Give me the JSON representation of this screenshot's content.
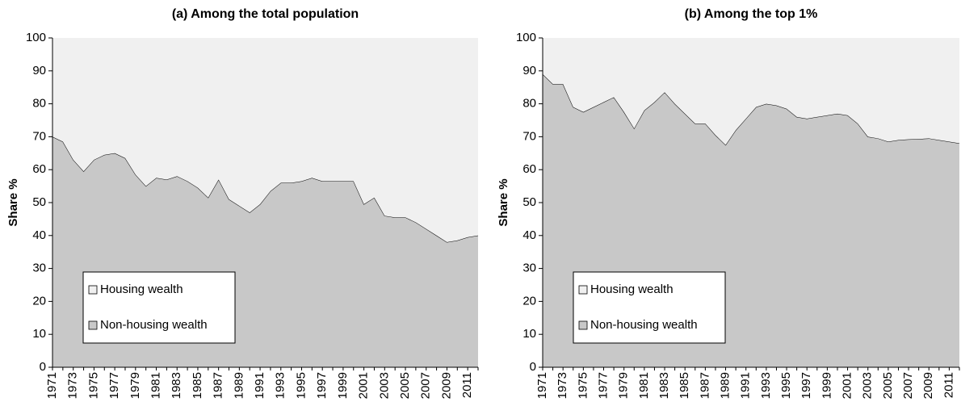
{
  "chart_data": [
    {
      "type": "area",
      "stacked": true,
      "title": "(a) Among the total population",
      "y_label": "Share %",
      "categories": [
        "1971",
        null,
        "1973",
        null,
        "1975",
        null,
        "1977",
        null,
        "1979",
        null,
        "1981",
        null,
        "1983",
        null,
        "1985",
        null,
        "1987",
        null,
        "1989",
        null,
        "1991",
        null,
        "1993",
        null,
        "1995",
        null,
        "1997",
        null,
        "1999",
        null,
        "2001",
        null,
        "2003",
        null,
        "2005",
        null,
        "2007",
        null,
        "2009",
        null,
        "2011",
        null
      ],
      "series": [
        {
          "name": "Non-housing wealth",
          "color": "#c8c8c8",
          "values": [
            70,
            68.5,
            63,
            59.5,
            63,
            64.5,
            65,
            63.5,
            58.5,
            55,
            57.5,
            57,
            58,
            56.5,
            54.5,
            51.5,
            57,
            51,
            49,
            47,
            49.5,
            53.5,
            56,
            56,
            56.5,
            57.5,
            56.5,
            56.5,
            56.5,
            56.5,
            49.5,
            51.5,
            46,
            45.5,
            45.5,
            44,
            42,
            40,
            38,
            38.5,
            39.5,
            40
          ]
        },
        {
          "name": "Housing wealth",
          "color": "#f0f0f0",
          "values": [
            30,
            31.5,
            37,
            40.5,
            37,
            35.5,
            35,
            36.5,
            41.5,
            45,
            42.5,
            43,
            42,
            43.5,
            45.5,
            48.5,
            43,
            49,
            51,
            53,
            50.5,
            46.5,
            44,
            44,
            43.5,
            42.5,
            43.5,
            43.5,
            43.5,
            43.5,
            50.5,
            48.5,
            54,
            54.5,
            54.5,
            56,
            58,
            60,
            62,
            61.5,
            60.5,
            60
          ]
        }
      ],
      "ylim": [
        0,
        100
      ],
      "yticks": [
        0,
        10,
        20,
        30,
        40,
        50,
        60,
        70,
        80,
        90,
        100
      ],
      "grid": false,
      "legend": "lower left"
    },
    {
      "type": "area",
      "stacked": true,
      "title": "(b) Among the top 1%",
      "y_label": "Share %",
      "categories": [
        "1971",
        null,
        "1973",
        null,
        "1975",
        null,
        "1977",
        null,
        "1979",
        null,
        "1981",
        null,
        "1983",
        null,
        "1985",
        null,
        "1987",
        null,
        "1989",
        null,
        "1991",
        null,
        "1993",
        null,
        "1995",
        null,
        "1997",
        null,
        "1999",
        null,
        "2001",
        null,
        "2003",
        null,
        "2005",
        null,
        "2007",
        null,
        "2009",
        null,
        "2011",
        null
      ],
      "series": [
        {
          "name": "Non-housing wealth",
          "color": "#c8c8c8",
          "values": [
            89,
            86,
            86,
            79,
            77.5,
            79,
            80.5,
            82,
            77.5,
            72.5,
            78,
            80.5,
            83.5,
            80,
            77,
            74,
            74,
            70.5,
            67.5,
            72,
            75.5,
            79,
            80,
            79.5,
            78.5,
            76,
            75.5,
            76,
            76.5,
            77,
            76.5,
            74,
            70,
            69.5,
            68.5,
            69,
            69.2,
            69.3,
            69.5,
            69,
            68.5,
            68
          ]
        },
        {
          "name": "Housing wealth",
          "color": "#f0f0f0",
          "values": [
            11,
            14,
            14,
            21,
            22.5,
            21,
            19.5,
            18,
            22.5,
            27.5,
            22,
            19.5,
            16.5,
            20,
            23,
            26,
            26,
            29.5,
            32.5,
            28,
            24.5,
            21,
            20,
            20.5,
            21.5,
            24,
            24.5,
            24,
            23.5,
            23,
            23.5,
            26,
            30,
            30.5,
            31.5,
            31,
            30.8,
            30.7,
            30.5,
            31,
            31.5,
            32
          ]
        }
      ],
      "ylim": [
        0,
        100
      ],
      "yticks": [
        0,
        10,
        20,
        30,
        40,
        50,
        60,
        70,
        80,
        90,
        100
      ],
      "grid": false,
      "legend": "lower left"
    }
  ]
}
